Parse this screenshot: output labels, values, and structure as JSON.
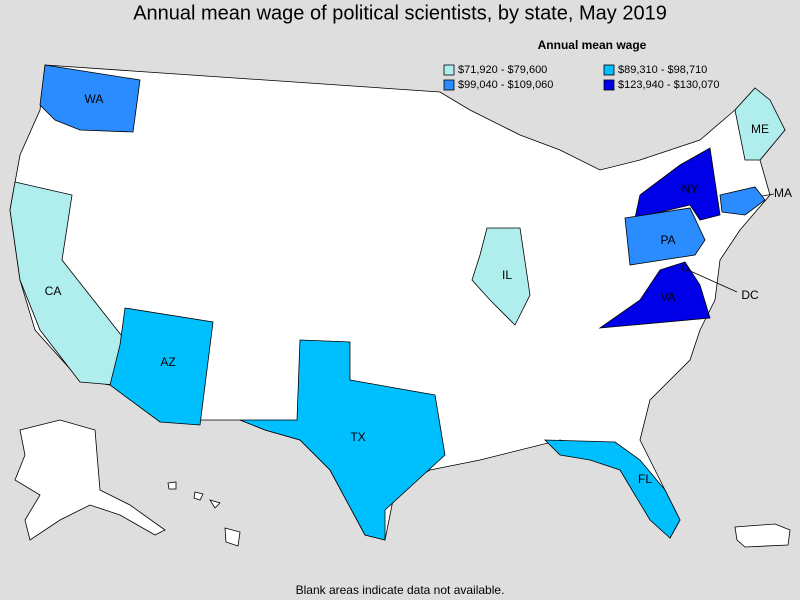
{
  "title": "Annual mean wage of political scientists, by state, May 2019",
  "legend": {
    "title": "Annual mean wage",
    "items": [
      {
        "label": "$71,920 - $79,600",
        "color": "#b0eeee"
      },
      {
        "label": "$89,310 - $98,710",
        "color": "#00bfff"
      },
      {
        "label": "$99,040 - $109,060",
        "color": "#2b8cff"
      },
      {
        "label": "$123,940 - $130,070",
        "color": "#0000e8"
      }
    ]
  },
  "states": [
    {
      "label": "WA",
      "color": "#2b8cff"
    },
    {
      "label": "CA",
      "color": "#b0eeee"
    },
    {
      "label": "AZ",
      "color": "#00bfff"
    },
    {
      "label": "TX",
      "color": "#00bfff"
    },
    {
      "label": "IL",
      "color": "#b0eeee"
    },
    {
      "label": "NY",
      "color": "#0000e8"
    },
    {
      "label": "ME",
      "color": "#b0eeee"
    },
    {
      "label": "MA",
      "color": "#2b8cff"
    },
    {
      "label": "PA",
      "color": "#2b8cff"
    },
    {
      "label": "VA",
      "color": "#0000e8"
    },
    {
      "label": "FL",
      "color": "#00bfff"
    },
    {
      "label": "DC",
      "color": "#0000e8"
    }
  ],
  "footnote": "Blank areas indicate data not available."
}
